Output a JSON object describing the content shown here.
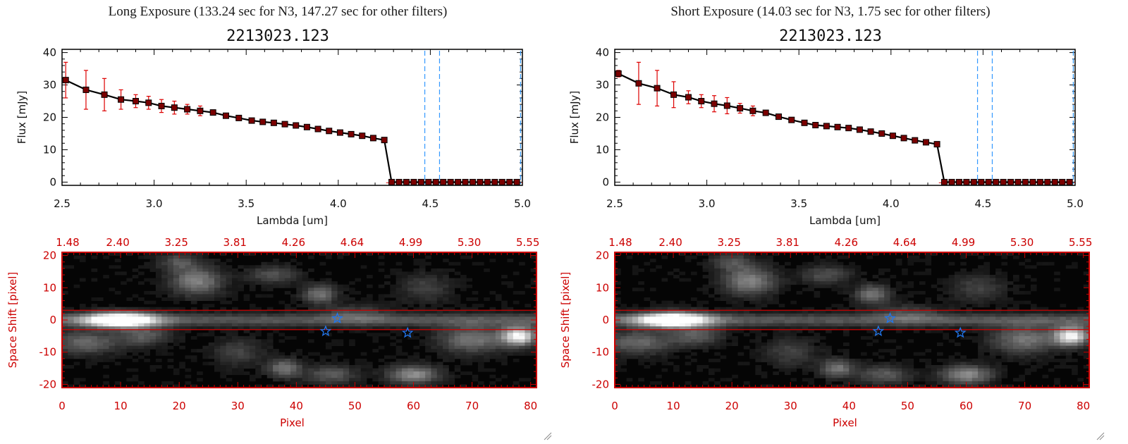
{
  "chart_data": [
    {
      "type": "line",
      "panel": "left-top",
      "title": "Long Exposure (133.24 sec for N3, 147.27 sec for other filters)",
      "subtitle": "2213023.123",
      "xlabel": "Lambda [um]",
      "ylabel": "Flux [mJy]",
      "xlim": [
        2.5,
        5.0
      ],
      "ylim": [
        -1,
        41
      ],
      "xticks": [
        "2.5",
        "3.0",
        "3.5",
        "4.0",
        "4.5",
        "5.0"
      ],
      "yticks": [
        "0",
        "10",
        "20",
        "30",
        "40"
      ],
      "dashed_vlines": [
        4.47,
        4.55,
        4.99
      ],
      "series": [
        {
          "name": "flux",
          "x": [
            2.52,
            2.63,
            2.73,
            2.82,
            2.9,
            2.97,
            3.04,
            3.11,
            3.18,
            3.25,
            3.32,
            3.39,
            3.46,
            3.53,
            3.59,
            3.65,
            3.71,
            3.77,
            3.83,
            3.89,
            3.95,
            4.01,
            4.07,
            4.13,
            4.19,
            4.25,
            4.29,
            4.33,
            4.37,
            4.41,
            4.45,
            4.49,
            4.53,
            4.57,
            4.61,
            4.65,
            4.69,
            4.73,
            4.77,
            4.81,
            4.85,
            4.89,
            4.93,
            4.97
          ],
          "y": [
            31.5,
            28.5,
            27.0,
            25.5,
            25.0,
            24.5,
            23.5,
            23.0,
            22.5,
            22.0,
            21.5,
            20.5,
            19.8,
            19.0,
            18.6,
            18.3,
            17.9,
            17.5,
            17.0,
            16.4,
            15.8,
            15.3,
            14.8,
            14.3,
            13.6,
            13.0,
            0,
            0,
            0,
            0,
            0,
            0,
            0,
            0,
            0,
            0,
            0,
            0,
            0,
            0,
            0,
            0,
            0,
            0
          ],
          "err": [
            5.5,
            6.0,
            5.0,
            3.0,
            2.0,
            2.0,
            2.0,
            2.0,
            1.5,
            1.5,
            0.8,
            0.5,
            0.5,
            0.5,
            0.5,
            0.5,
            0.5,
            0.5,
            0.5,
            0.5,
            0.5,
            0.5,
            0.5,
            0.5,
            0.5,
            0.5,
            0,
            0,
            0,
            0,
            0,
            0,
            0,
            0,
            0,
            0,
            0,
            0,
            0,
            0,
            0,
            0,
            0,
            0
          ]
        }
      ]
    },
    {
      "type": "heatmap",
      "panel": "left-bottom",
      "xlabel": "Pixel",
      "ylabel": "Space Shift [pixel]",
      "xlim": [
        0,
        81
      ],
      "ylim": [
        -21,
        21
      ],
      "xticks": [
        "0",
        "10",
        "20",
        "30",
        "40",
        "50",
        "60",
        "70",
        "80"
      ],
      "yticks": [
        "-20",
        "-10",
        "0",
        "10",
        "20"
      ],
      "top_ticks": [
        "1.48",
        "2.40",
        "3.25",
        "3.81",
        "4.26",
        "4.64",
        "4.99",
        "5.30",
        "5.55"
      ],
      "hlines": [
        3,
        -3
      ],
      "stars": [
        {
          "x": 45,
          "y": -3.5
        },
        {
          "x": 47,
          "y": 0.5
        },
        {
          "x": 59,
          "y": -4
        }
      ]
    },
    {
      "type": "line",
      "panel": "right-top",
      "title": "Short Exposure (14.03 sec for N3, 1.75 sec for other filters)",
      "subtitle": "2213023.123",
      "xlabel": "Lambda [um]",
      "ylabel": "Flux [mJy]",
      "xlim": [
        2.5,
        5.0
      ],
      "ylim": [
        -1,
        41
      ],
      "xticks": [
        "2.5",
        "3.0",
        "3.5",
        "4.0",
        "4.5",
        "5.0"
      ],
      "yticks": [
        "0",
        "10",
        "20",
        "30",
        "40"
      ],
      "dashed_vlines": [
        4.47,
        4.55,
        4.99
      ],
      "series": [
        {
          "name": "flux",
          "x": [
            2.52,
            2.63,
            2.73,
            2.82,
            2.9,
            2.97,
            3.04,
            3.11,
            3.18,
            3.25,
            3.32,
            3.39,
            3.46,
            3.53,
            3.59,
            3.65,
            3.71,
            3.77,
            3.83,
            3.89,
            3.95,
            4.01,
            4.07,
            4.13,
            4.19,
            4.25,
            4.29,
            4.33,
            4.37,
            4.41,
            4.45,
            4.49,
            4.53,
            4.57,
            4.61,
            4.65,
            4.69,
            4.73,
            4.77,
            4.81,
            4.85,
            4.89,
            4.93,
            4.97
          ],
          "y": [
            33.5,
            30.5,
            29.0,
            27.0,
            26.2,
            25.0,
            24.2,
            23.6,
            22.8,
            22.0,
            21.4,
            20.2,
            19.2,
            18.3,
            17.6,
            17.3,
            17.0,
            16.7,
            16.2,
            15.6,
            15.0,
            14.3,
            13.6,
            12.9,
            12.3,
            11.7,
            0,
            0,
            0,
            0,
            0,
            0,
            0,
            0,
            0,
            0,
            0,
            0,
            0,
            0,
            0,
            0,
            0,
            0
          ],
          "err": [
            1.0,
            6.5,
            5.5,
            4.0,
            2.0,
            2.0,
            2.5,
            2.5,
            1.5,
            1.5,
            0.5,
            0.5,
            0.5,
            0.5,
            0.5,
            0.5,
            0.5,
            0.5,
            0.5,
            0.5,
            0.5,
            0.5,
            0.5,
            0.5,
            0.5,
            0.5,
            0,
            0,
            0,
            0,
            0,
            0,
            0,
            0,
            0,
            0,
            0,
            0,
            0,
            0,
            0,
            0,
            0,
            0
          ]
        }
      ]
    },
    {
      "type": "heatmap",
      "panel": "right-bottom",
      "xlabel": "Pixel",
      "ylabel": "Space Shift [pixel]",
      "xlim": [
        0,
        81
      ],
      "ylim": [
        -21,
        21
      ],
      "xticks": [
        "0",
        "10",
        "20",
        "30",
        "40",
        "50",
        "60",
        "70",
        "80"
      ],
      "yticks": [
        "-20",
        "-10",
        "0",
        "10",
        "20"
      ],
      "top_ticks": [
        "1.48",
        "2.40",
        "3.25",
        "3.81",
        "4.26",
        "4.64",
        "4.99",
        "5.30",
        "5.55"
      ],
      "hlines": [
        3,
        -3
      ],
      "stars": [
        {
          "x": 45,
          "y": -3.5
        },
        {
          "x": 47,
          "y": 0.5
        },
        {
          "x": 59,
          "y": -4
        }
      ]
    }
  ],
  "colors": {
    "series_line": "#000000",
    "marker": "#7a0000",
    "errorbar": "#dd0000",
    "dashed": "#3399ff",
    "red_axis": "#cc0000",
    "star": "#2277ee"
  },
  "icons": {
    "resize": "resize-grip-icon"
  }
}
